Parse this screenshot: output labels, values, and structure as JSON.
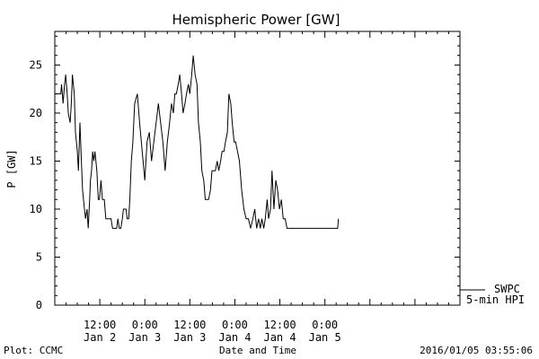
{
  "chart_data": {
    "type": "line",
    "title": "Hemispheric Power [GW]",
    "ylabel": "P [GW]",
    "xlabel": "Date and Time",
    "ylim": [
      0,
      28.5
    ],
    "yticks": [
      0,
      5,
      10,
      15,
      20,
      25
    ],
    "xlim_hours": [
      0,
      108
    ],
    "xticks": [
      {
        "hour": 12,
        "time": "12:00",
        "date": "Jan 2"
      },
      {
        "hour": 24,
        "time": "0:00",
        "date": "Jan 3"
      },
      {
        "hour": 36,
        "time": "12:00",
        "date": "Jan 3"
      },
      {
        "hour": 48,
        "time": "0:00",
        "date": "Jan 4"
      },
      {
        "hour": 60,
        "time": "12:00",
        "date": "Jan 4"
      },
      {
        "hour": 72,
        "time": "0:00",
        "date": "Jan 5"
      }
    ],
    "legend": {
      "position": "bottom-right",
      "line1": "SWPC",
      "line2": "5-min HPI"
    },
    "series": [
      {
        "name": "SWPC 5-min HPI",
        "x": [
          0,
          1.6,
          1.8,
          2.0,
          2.2,
          2.6,
          2.9,
          3.3,
          3.6,
          4.1,
          4.4,
          4.7,
          5.2,
          5.5,
          6.0,
          6.3,
          6.7,
          7.1,
          7.4,
          7.9,
          8.2,
          8.6,
          8.9,
          9.3,
          9.5,
          9.8,
          10.1,
          10.4,
          10.7,
          11.2,
          11.6,
          11.9,
          12.3,
          12.7,
          13.2,
          13.6,
          14.0,
          14.3,
          14.7,
          15.0,
          15.4,
          15.8,
          16.1,
          16.5,
          16.8,
          17.2,
          17.6,
          18.0,
          18.3,
          18.6,
          19.0,
          19.3,
          19.7,
          20.0,
          20.4,
          20.8,
          21.3,
          22.0,
          22.6,
          23.3,
          24.0,
          24.6,
          25.2,
          25.8,
          26.4,
          27.0,
          27.6,
          28.2,
          28.8,
          29.4,
          30.0,
          30.6,
          31.1,
          31.6,
          32.0,
          32.4,
          32.9,
          33.3,
          33.8,
          34.2,
          34.7,
          35.1,
          35.6,
          36.0,
          36.5,
          36.9,
          37.4,
          37.9,
          38.3,
          38.8,
          39.2,
          39.7,
          40.1,
          40.6,
          41.0,
          41.5,
          41.9,
          42.4,
          42.8,
          43.3,
          43.7,
          44.2,
          44.6,
          45.1,
          45.5,
          46.0,
          46.4,
          46.9,
          47.3,
          47.8,
          48.2,
          48.7,
          49.2,
          49.8,
          50.4,
          51.0,
          51.6,
          52.2,
          52.8,
          53.3,
          53.8,
          54.3,
          54.8,
          55.2,
          55.7,
          56.1,
          56.6,
          57.0,
          57.5,
          57.9,
          58.4,
          58.9,
          59.4,
          59.9,
          60.4,
          60.9,
          61.4,
          61.9,
          62.4,
          62.9,
          63.4,
          63.9,
          64.4,
          64.9,
          65.4,
          65.9,
          66.4,
          66.8,
          67.2,
          67.6,
          68.0,
          68.5,
          69.0,
          69.5,
          70.0,
          70.8,
          71.6,
          72.4,
          73.2,
          74.0,
          74.8,
          75.4,
          75.6
        ],
        "values": [
          22,
          22,
          23,
          22,
          21,
          23,
          24,
          22,
          20,
          19,
          21,
          24,
          22,
          18,
          16,
          14,
          19,
          15,
          12,
          10,
          9,
          10,
          8,
          11,
          13,
          14,
          16,
          15,
          16,
          14,
          11,
          11,
          13,
          11,
          11,
          9,
          9,
          9,
          9,
          9,
          8,
          8,
          8,
          8,
          9,
          8,
          8,
          9,
          10,
          10,
          10,
          9,
          9,
          11,
          15,
          17,
          21,
          22,
          19,
          16,
          13,
          17,
          18,
          15,
          17,
          19,
          21,
          19,
          17,
          14,
          17,
          19,
          21,
          20,
          22,
          22,
          23,
          24,
          22,
          20,
          21,
          22,
          23,
          22,
          24,
          26,
          24,
          23,
          19,
          17,
          14,
          13,
          11,
          11,
          11,
          12,
          14,
          14,
          14,
          15,
          14,
          15,
          16,
          16,
          17,
          18,
          22,
          21,
          19,
          17,
          17,
          16,
          15,
          12,
          10,
          9,
          9,
          8,
          9,
          10,
          8,
          9,
          8,
          9,
          8,
          9,
          11,
          9,
          10,
          14,
          10,
          13,
          12,
          10,
          11,
          9,
          9,
          8,
          8,
          8,
          8,
          8,
          8,
          8,
          8,
          8,
          8,
          8,
          8,
          8,
          8,
          8,
          8,
          8,
          8,
          8,
          8,
          8,
          8,
          8,
          8,
          8,
          9
        ]
      }
    ]
  },
  "footer": {
    "left": "Plot: CCMC",
    "center": "Date and Time",
    "right": "2016/01/05 03:55:06"
  }
}
